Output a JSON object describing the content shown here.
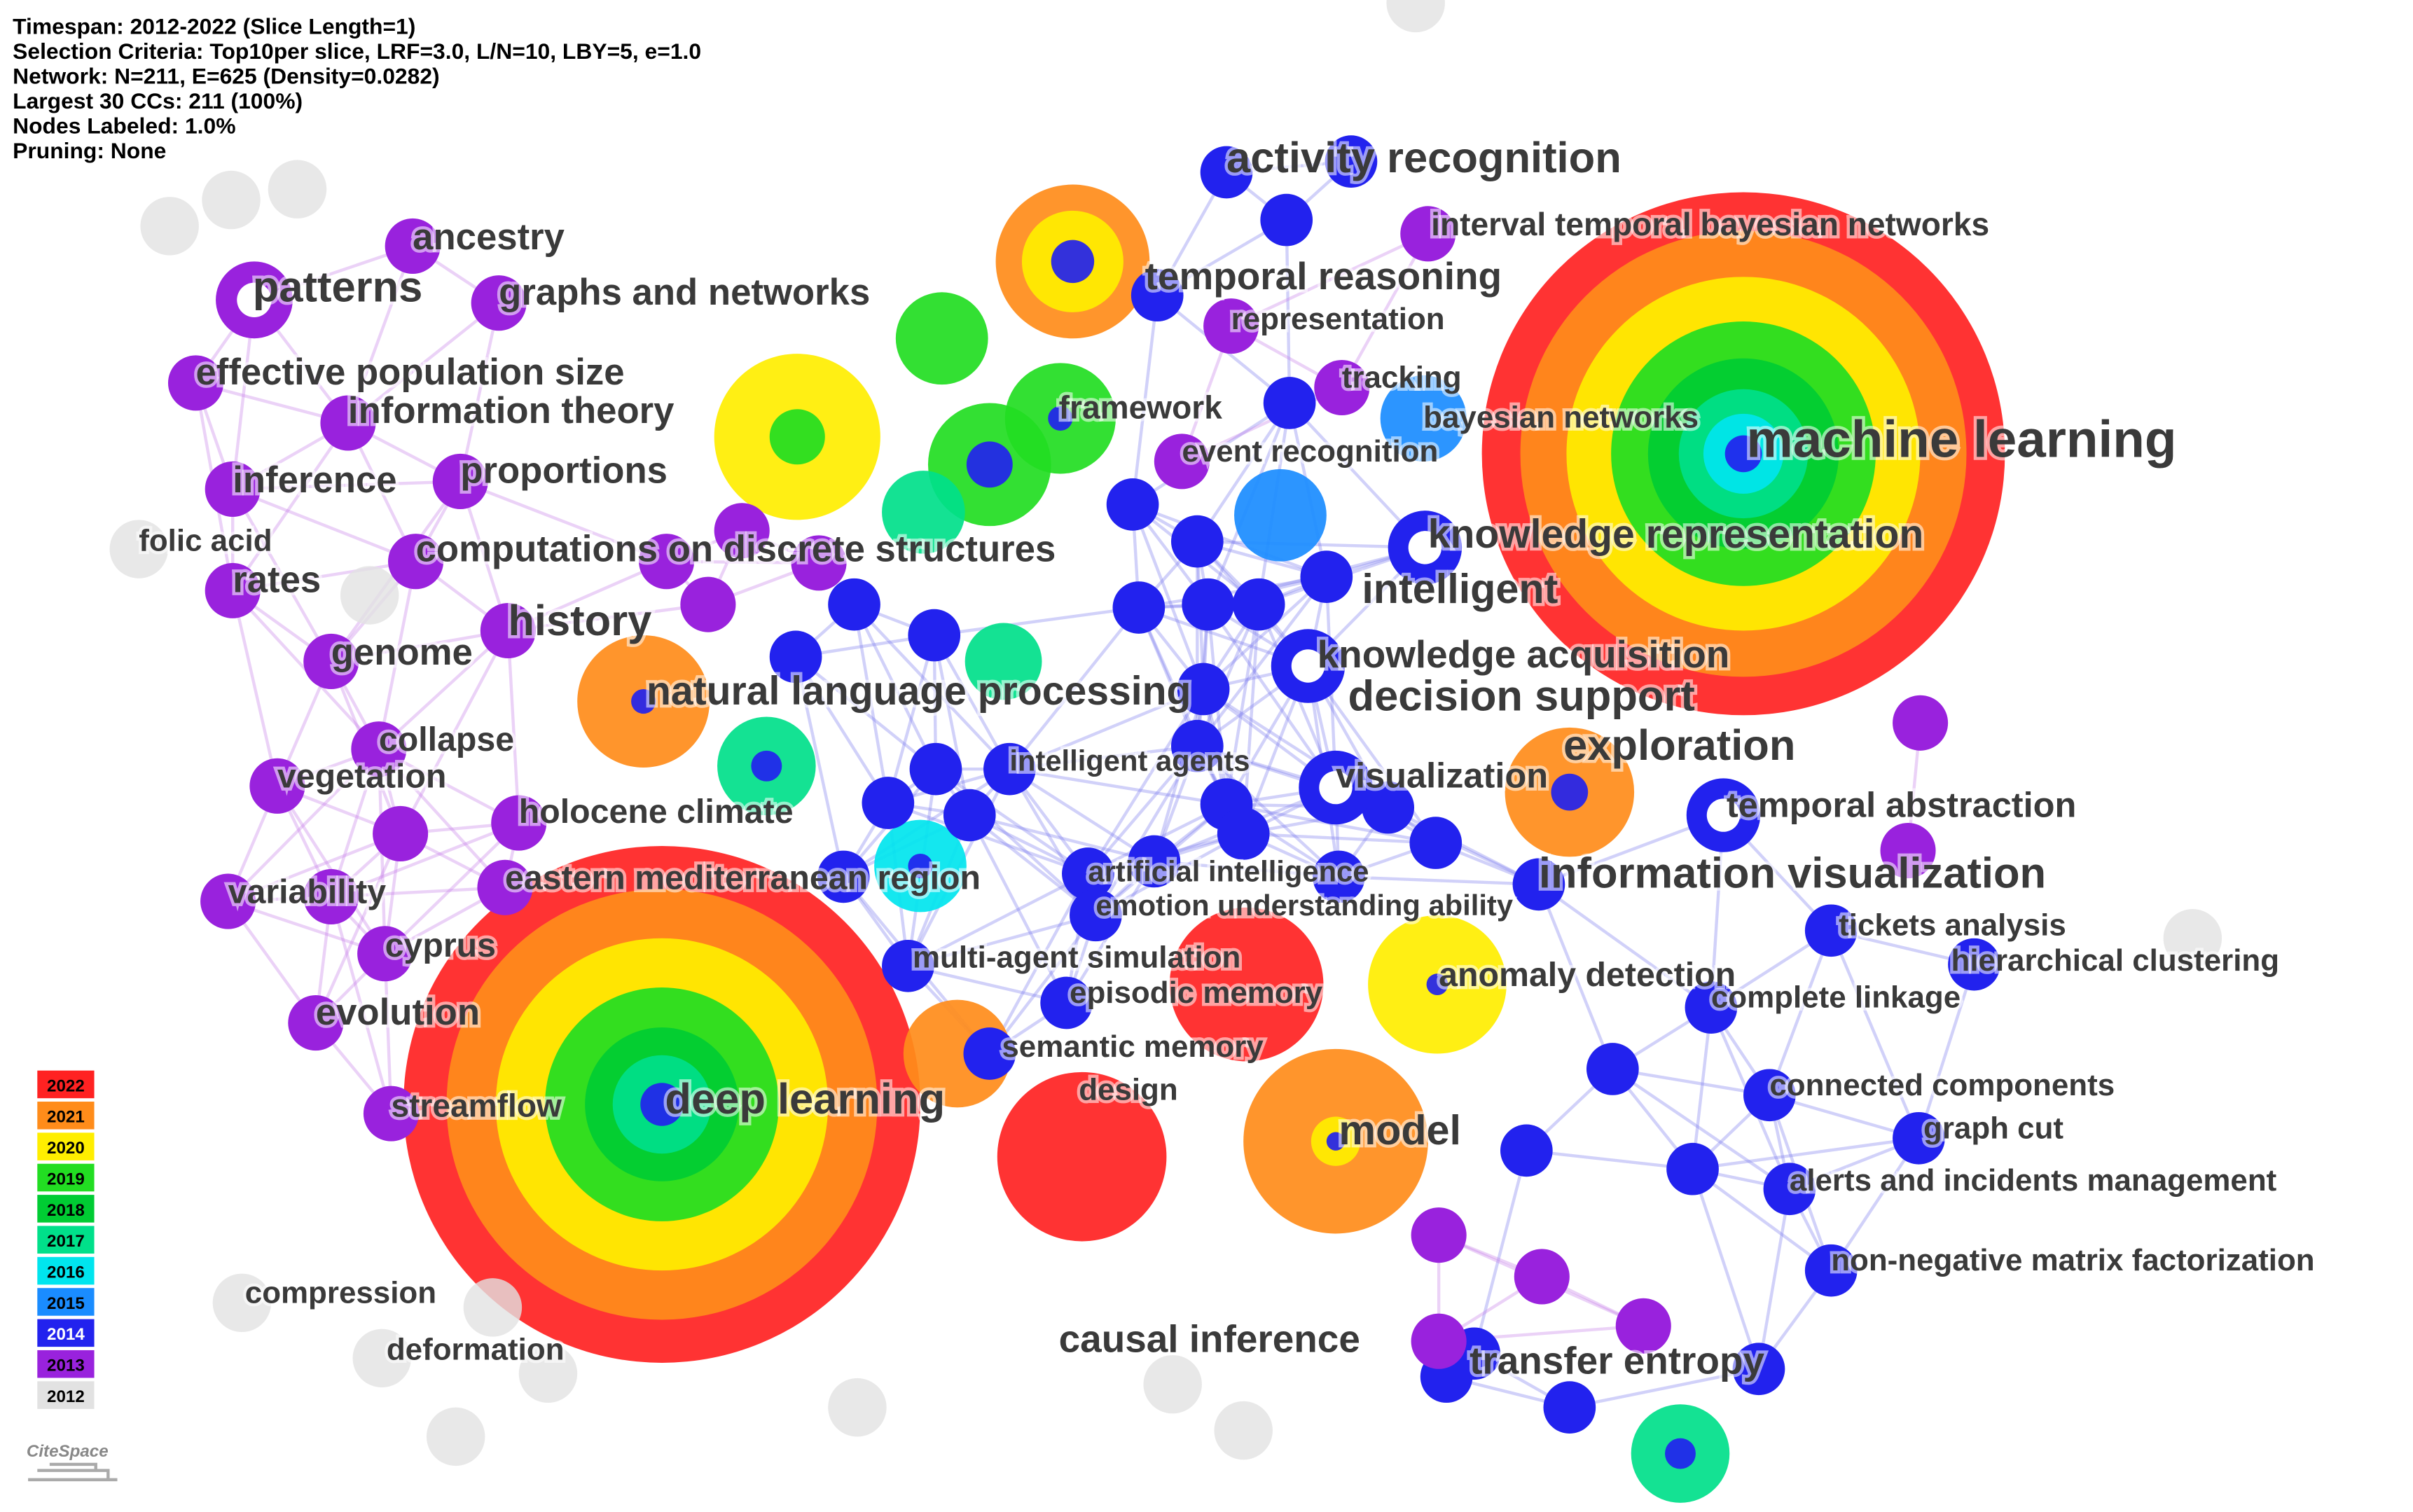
{
  "header": {
    "lines": [
      "Timespan: 2012-2022 (Slice Length=1)",
      "Selection Criteria: Top10per slice, LRF=3.0, L/N=10, LBY=5, e=1.0",
      "Network: N=211, E=625 (Density=0.0282)",
      "Largest 30 CCs: 211 (100%)",
      "Nodes Labeled: 1.0%",
      "Pruning: None"
    ]
  },
  "nodes": [
    {
      "label": "activity recognition"
    },
    {
      "label": "interval temporal bayesian networks"
    },
    {
      "label": "temporal reasoning"
    },
    {
      "label": "representation"
    },
    {
      "label": "tracking"
    },
    {
      "label": "bayesian networks"
    },
    {
      "label": "machine learning"
    },
    {
      "label": "event recognition"
    },
    {
      "label": "framework"
    },
    {
      "label": "knowledge representation"
    },
    {
      "label": "intelligent"
    },
    {
      "label": "knowledge acquisition"
    },
    {
      "label": "decision support"
    },
    {
      "label": "exploration"
    },
    {
      "label": "temporal abstraction"
    },
    {
      "label": "information visualization"
    },
    {
      "label": "visualization"
    },
    {
      "label": "intelligent agents"
    },
    {
      "label": "artificial intelligence"
    },
    {
      "label": "emotion understanding ability"
    },
    {
      "label": "anomaly detection"
    },
    {
      "label": "multi-agent simulation"
    },
    {
      "label": "episodic memory"
    },
    {
      "label": "semantic memory"
    },
    {
      "label": "design"
    },
    {
      "label": "model"
    },
    {
      "label": "causal inference"
    },
    {
      "label": "transfer entropy"
    },
    {
      "label": "tickets analysis"
    },
    {
      "label": "hierarchical clustering"
    },
    {
      "label": "complete linkage"
    },
    {
      "label": "connected components"
    },
    {
      "label": "graph cut"
    },
    {
      "label": "alerts and incidents management"
    },
    {
      "label": "non-negative matrix factorization"
    },
    {
      "label": "ancestry"
    },
    {
      "label": "patterns"
    },
    {
      "label": "graphs and networks"
    },
    {
      "label": "effective population size"
    },
    {
      "label": "information theory"
    },
    {
      "label": "inference"
    },
    {
      "label": "proportions"
    },
    {
      "label": "folic acid"
    },
    {
      "label": "computations on discrete structures"
    },
    {
      "label": "rates"
    },
    {
      "label": "history"
    },
    {
      "label": "genome"
    },
    {
      "label": "natural language processing"
    },
    {
      "label": "collapse"
    },
    {
      "label": "vegetation"
    },
    {
      "label": "holocene climate"
    },
    {
      "label": "variability"
    },
    {
      "label": "eastern mediterranean region"
    },
    {
      "label": "cyprus"
    },
    {
      "label": "evolution"
    },
    {
      "label": "streamflow"
    },
    {
      "label": "deep learning"
    },
    {
      "label": "compression"
    },
    {
      "label": "deformation"
    }
  ],
  "legend": {
    "years": [
      "2022",
      "2021",
      "2020",
      "2019",
      "2018",
      "2017",
      "2016",
      "2015",
      "2014",
      "2013",
      "2012"
    ]
  },
  "logo": "CiteSpace"
}
